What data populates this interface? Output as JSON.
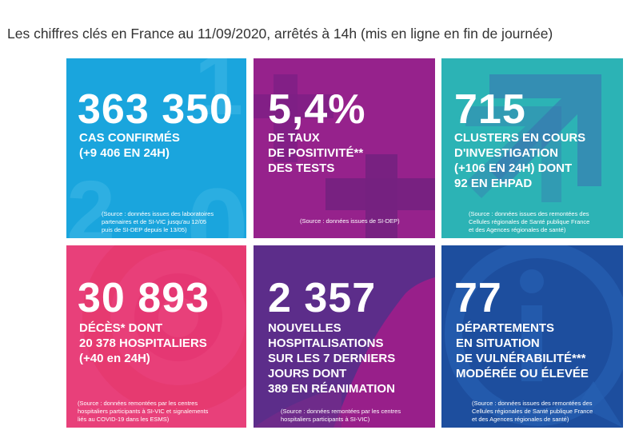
{
  "heading": "Les chiffres clés en France au 11/09/2020, arrêtés à 14h (mis en ligne en fin de journée)",
  "colors": {
    "cyan": "#1aa5dd",
    "purple": "#96228c",
    "teal": "#2cb3b5",
    "pink": "#e8407a",
    "violet": "#5c2d8a",
    "blue": "#1d4e9e"
  },
  "tiles": [
    {
      "value": "363 350",
      "lines": [
        "CAS CONFIRMÉS",
        "(+9 406 EN 24H)"
      ],
      "source": [
        "(Source : données issues des laboratoires",
        "partenaires et de SI-VIC jusqu'au 12/05",
        "puis de SI-DEP depuis le 13/05)"
      ]
    },
    {
      "value": "5,4%",
      "lines": [
        "DE TAUX",
        "DE POSITIVITÉ**",
        "DES TESTS"
      ],
      "source": [
        "(Source : données issues de SI-DEP)"
      ]
    },
    {
      "value": "715",
      "lines": [
        "CLUSTERS EN COURS",
        "D'INVESTIGATION",
        "(+106 EN 24H) DONT",
        "92 EN EHPAD"
      ],
      "source": [
        "(Source : données issues des remontées des",
        "Cellules régionales de Santé publique France",
        "et des Agences régionales de santé)"
      ]
    },
    {
      "value": "30 893",
      "lines": [
        "DÉCÈS* DONT",
        "20 378 HOSPITALIERS",
        "(+40 en 24H)"
      ],
      "source": [
        "(Source : données remontées par les centres",
        "hospitaliers participants à SI-VIC et signalements",
        "liés au COVID-19 dans les ESMS)"
      ]
    },
    {
      "value": "2 357",
      "lines": [
        "NOUVELLES",
        "HOSPITALISATIONS",
        "SUR LES 7 DERNIERS",
        "JOURS DONT",
        "389 EN RÉANIMATION"
      ],
      "source": [
        "(Source : données remontées par les centres",
        "hospitaliers participants à SI-VIC)"
      ]
    },
    {
      "value": "77",
      "lines": [
        "DÉPARTEMENTS",
        "EN SITUATION",
        "DE VULNÉRABILITÉ***",
        "MODÉRÉE OU ÉLEVÉE"
      ],
      "source": [
        "(Source : données issues des remontées des",
        "Cellules régionales de Santé publique France",
        "et des Agences régionales de santé)"
      ]
    }
  ]
}
